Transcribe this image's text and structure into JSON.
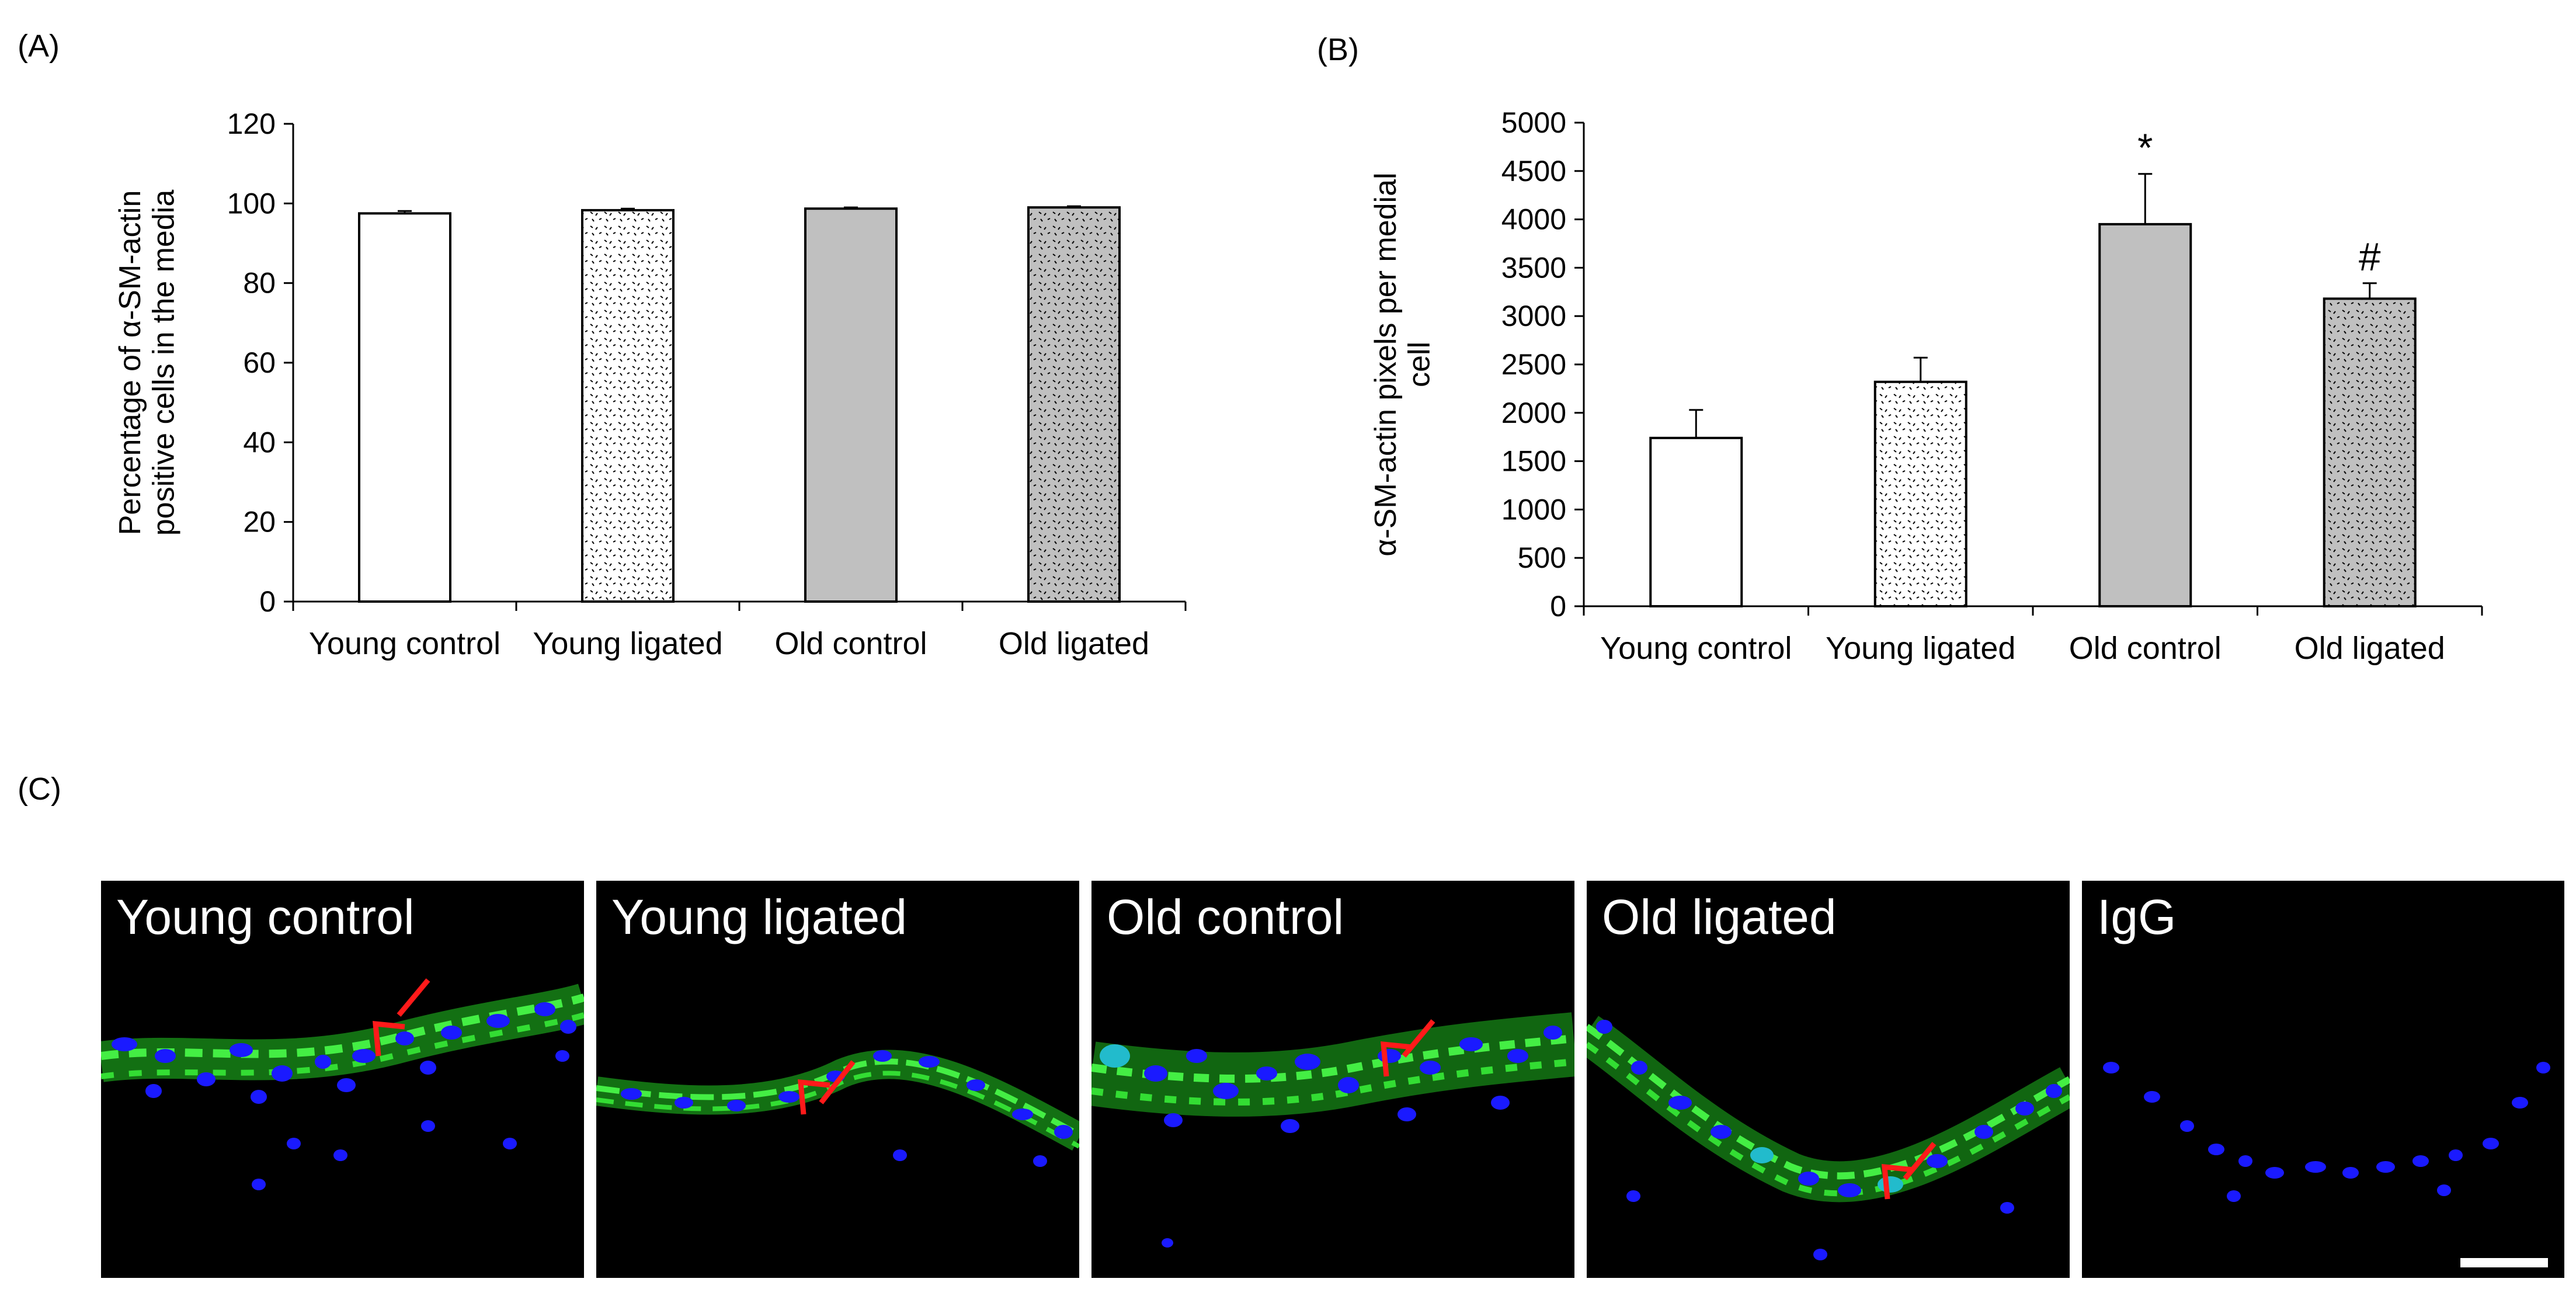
{
  "panel_labels": {
    "a": "(A)",
    "b": "(B)",
    "c": "(C)"
  },
  "colors": {
    "bar_white": "#ffffff",
    "bar_gray": "#c0c0c0",
    "stroke": "#000000",
    "nucleus": "#1a1aff",
    "actin": "#22cc22",
    "arrow": "#ff1a1a"
  },
  "chart_data": [
    {
      "id": "A",
      "type": "bar",
      "categories": [
        "Young control",
        "Young ligated",
        "Old control",
        "Old ligated"
      ],
      "values": [
        97.5,
        98.3,
        98.7,
        99.0
      ],
      "errors": [
        0.6,
        0.4,
        0.3,
        0.3
      ],
      "fills": [
        "white",
        "dotted",
        "gray",
        "dotted-gray"
      ],
      "annotations": [
        "",
        "",
        "",
        ""
      ],
      "title": "",
      "xlabel": "",
      "ylabel_lines": [
        "Percentage of α-SM-actin",
        "positive cells in the media"
      ],
      "ylim": [
        0,
        120
      ],
      "yticks": [
        0,
        20,
        40,
        60,
        80,
        100,
        120
      ],
      "grid": false,
      "legend": "none"
    },
    {
      "id": "B",
      "type": "bar",
      "categories": [
        "Young control",
        "Young ligated",
        "Old control",
        "Old ligated"
      ],
      "values": [
        1740,
        2320,
        3950,
        3180
      ],
      "errors": [
        290,
        250,
        520,
        160
      ],
      "fills": [
        "white",
        "dotted",
        "gray",
        "dotted-gray"
      ],
      "annotations": [
        "",
        "",
        "*",
        "#"
      ],
      "title": "",
      "xlabel": "",
      "ylabel_lines": [
        "α-SM-actin pixels per medial",
        "cell"
      ],
      "ylim": [
        0,
        5000
      ],
      "yticks": [
        0,
        500,
        1000,
        1500,
        2000,
        2500,
        3000,
        3500,
        4000,
        4500,
        5000
      ],
      "grid": false,
      "legend": "none"
    }
  ],
  "micrographs": [
    {
      "title": "Young control"
    },
    {
      "title": "Young ligated"
    },
    {
      "title": "Old control"
    },
    {
      "title": "Old ligated"
    },
    {
      "title": "IgG"
    }
  ]
}
